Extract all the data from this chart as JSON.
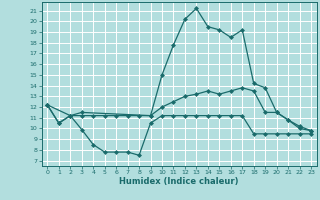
{
  "xlabel": "Humidex (Indice chaleur)",
  "bg_color": "#b2dede",
  "grid_color": "#ffffff",
  "line_color": "#1a6b6b",
  "xlim": [
    -0.5,
    23.5
  ],
  "ylim": [
    6.5,
    21.8
  ],
  "yticks": [
    7,
    8,
    9,
    10,
    11,
    12,
    13,
    14,
    15,
    16,
    17,
    18,
    19,
    20,
    21
  ],
  "xticks": [
    0,
    1,
    2,
    3,
    4,
    5,
    6,
    7,
    8,
    9,
    10,
    11,
    12,
    13,
    14,
    15,
    16,
    17,
    18,
    19,
    20,
    21,
    22,
    23
  ],
  "line1_x": [
    0,
    1,
    2,
    3,
    4,
    5,
    6,
    7,
    8,
    9,
    10,
    11,
    12,
    13,
    14,
    15,
    16,
    17,
    18,
    19,
    20,
    21,
    22,
    23
  ],
  "line1_y": [
    12.2,
    10.5,
    11.2,
    9.9,
    8.5,
    7.8,
    7.8,
    7.8,
    7.5,
    10.5,
    11.2,
    11.2,
    11.2,
    11.2,
    11.2,
    11.2,
    11.2,
    11.2,
    9.5,
    9.5,
    9.5,
    9.5,
    9.5,
    9.5
  ],
  "line2_x": [
    0,
    1,
    2,
    3,
    4,
    5,
    6,
    7,
    8,
    9,
    10,
    11,
    12,
    13,
    14,
    15,
    16,
    17,
    18,
    19,
    20,
    21,
    22,
    23
  ],
  "line2_y": [
    12.2,
    10.5,
    11.2,
    11.2,
    11.2,
    11.2,
    11.2,
    11.2,
    11.2,
    11.2,
    12.0,
    12.5,
    13.0,
    13.2,
    13.5,
    13.2,
    13.5,
    13.8,
    13.5,
    11.5,
    11.5,
    10.8,
    10.2,
    9.8
  ],
  "line3_x": [
    0,
    2,
    3,
    9,
    10,
    11,
    12,
    13,
    14,
    15,
    16,
    17,
    18,
    19,
    20,
    21,
    22,
    23
  ],
  "line3_y": [
    12.2,
    11.2,
    11.5,
    11.2,
    15.0,
    17.8,
    20.2,
    21.2,
    19.5,
    19.2,
    18.5,
    19.2,
    14.2,
    13.8,
    11.5,
    10.8,
    10.0,
    9.8
  ]
}
